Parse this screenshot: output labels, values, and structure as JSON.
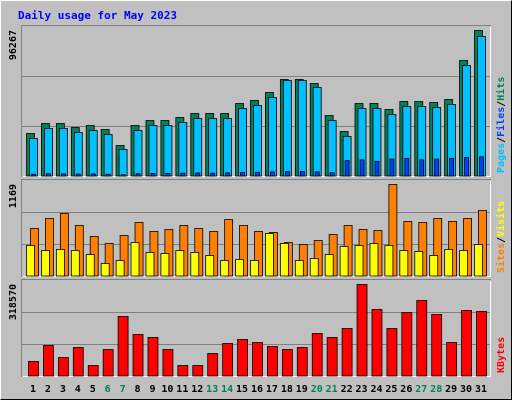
{
  "title": "Daily usage for May 2023",
  "chart_data": [
    {
      "type": "bar",
      "ylim": [
        0,
        96267
      ],
      "yticks": [
        96267
      ],
      "legend_separator": "/",
      "series": [
        {
          "name": "Hits",
          "color": "#00805c",
          "values": [
            28354,
            34948,
            34948,
            32310,
            33629,
            30991,
            20441,
            33629,
            36925,
            36925,
            38904,
            41541,
            41541,
            41541,
            48134,
            50113,
            55388,
            63960,
            63960,
            61322,
            40222,
            29672,
            48134,
            48134,
            44179,
            49453,
            49453,
            48794,
            50772,
            76488,
            96267
          ]
        },
        {
          "name": "Pages",
          "color": "#00c0ff",
          "values": [
            25000,
            31700,
            31700,
            29000,
            30300,
            27700,
            17800,
            30300,
            33600,
            33600,
            35600,
            38200,
            38200,
            38200,
            44800,
            46800,
            52100,
            63300,
            63300,
            58700,
            36900,
            26400,
            44800,
            44800,
            40900,
            46100,
            46100,
            45500,
            47500,
            73200,
            92300
          ]
        },
        {
          "name": "Files",
          "color": "#0040ff",
          "values": [
            1500,
            1800,
            1700,
            1600,
            1700,
            1500,
            1200,
            1800,
            2000,
            2100,
            2200,
            2300,
            2200,
            2400,
            2600,
            2800,
            3000,
            3200,
            3300,
            3100,
            2500,
            10500,
            11000,
            10000,
            11500,
            12000,
            11000,
            11500,
            12000,
            12500,
            13000
          ]
        }
      ]
    },
    {
      "type": "bar",
      "ylim": [
        0,
        1169
      ],
      "yticks": [
        1169
      ],
      "legend_separator": "/",
      "series": [
        {
          "name": "Sites",
          "color": "#ff8000",
          "values": [
            610,
            737,
            800,
            648,
            508,
            419,
            521,
            686,
            572,
            597,
            648,
            610,
            572,
            724,
            648,
            572,
            559,
            432,
            406,
            457,
            533,
            648,
            597,
            584,
            1169,
            699,
            686,
            737,
            699,
            737,
            838
          ]
        },
        {
          "name": "Visits",
          "color": "#ffff00",
          "values": [
            394,
            330,
            343,
            330,
            279,
            165,
            203,
            432,
            305,
            292,
            330,
            305,
            267,
            203,
            216,
            203,
            546,
            419,
            203,
            229,
            279,
            381,
            394,
            419,
            394,
            330,
            318,
            267,
            343,
            330,
            406
          ]
        }
      ]
    },
    {
      "type": "bar",
      "ylim": [
        0,
        318570
      ],
      "yticks": [
        318570
      ],
      "categories": [
        "1",
        "2",
        "3",
        "4",
        "5",
        "6",
        "7",
        "8",
        "9",
        "10",
        "11",
        "12",
        "13",
        "14",
        "15",
        "16",
        "17",
        "18",
        "19",
        "20",
        "21",
        "22",
        "23",
        "24",
        "25",
        "26",
        "27",
        "28",
        "29",
        "30",
        "31"
      ],
      "category_color": "#000000",
      "highlight": {
        "color": "#00805c",
        "indices": [
          5,
          6,
          12,
          13,
          19,
          20,
          26,
          27
        ]
      },
      "series": [
        {
          "name": "KBytes",
          "color": "#ff0000",
          "values": [
            51945,
            107353,
            65797,
            100427,
            38093,
            93501,
            207780,
            145446,
            135057,
            93501,
            38093,
            38093,
            79649,
            114279,
            128131,
            117742,
            103890,
            93501,
            100427,
            148909,
            135057,
            166224,
            318570,
            232021,
            166224,
            221632,
            263188,
            214706,
            117742,
            228558,
            225095
          ]
        }
      ]
    }
  ]
}
